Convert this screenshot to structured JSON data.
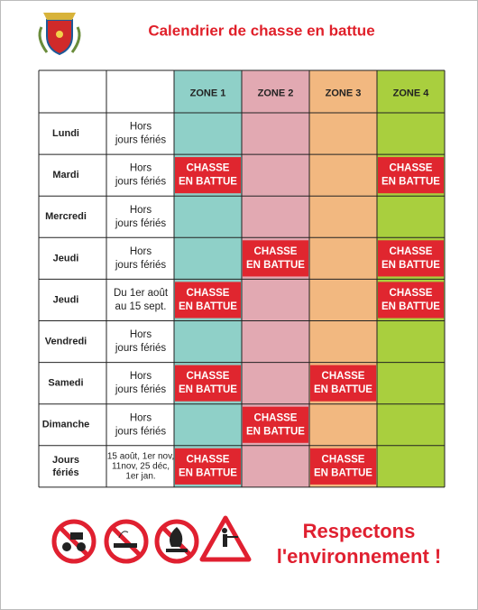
{
  "title": "Calendrier de chasse en battue",
  "table": {
    "zones": [
      "ZONE 1",
      "ZONE 2",
      "ZONE 3",
      "ZONE 4"
    ],
    "rows": [
      {
        "day": [
          "Lundi"
        ],
        "period": [
          "Hors",
          "jours fériés"
        ],
        "zones": [
          null,
          null,
          null,
          null
        ]
      },
      {
        "day": [
          "Mardi"
        ],
        "period": [
          "Hors",
          "jours fériés"
        ],
        "zones": [
          [
            "CHASSE",
            "EN BATTUE"
          ],
          null,
          null,
          [
            "CHASSE",
            "EN BATTUE"
          ]
        ]
      },
      {
        "day": [
          "Mercredi"
        ],
        "period": [
          "Hors",
          "jours fériés"
        ],
        "zones": [
          null,
          null,
          null,
          null
        ]
      },
      {
        "day": [
          "Jeudi"
        ],
        "period": [
          "Hors",
          "jours fériés"
        ],
        "zones": [
          null,
          [
            "CHASSE",
            "EN BATTUE"
          ],
          null,
          [
            "CHASSE",
            "EN BATTUE"
          ]
        ]
      },
      {
        "day": [
          "Jeudi"
        ],
        "period": [
          "Du 1er août",
          "au 15 sept."
        ],
        "zones": [
          [
            "CHASSE",
            "EN BATTUE"
          ],
          null,
          null,
          [
            "CHASSE",
            "EN BATTUE"
          ]
        ]
      },
      {
        "day": [
          "Vendredi"
        ],
        "period": [
          "Hors",
          "jours fériés"
        ],
        "zones": [
          null,
          null,
          null,
          null
        ]
      },
      {
        "day": [
          "Samedi"
        ],
        "period": [
          "Hors",
          "jours fériés"
        ],
        "zones": [
          [
            "CHASSE",
            "EN BATTUE"
          ],
          null,
          [
            "CHASSE",
            "EN BATTUE"
          ],
          null
        ]
      },
      {
        "day": [
          "Dimanche"
        ],
        "period": [
          "Hors",
          "jours fériés"
        ],
        "zones": [
          null,
          [
            "CHASSE",
            "EN BATTUE"
          ],
          null,
          null
        ]
      },
      {
        "day": [
          "Jours",
          "fériés"
        ],
        "period": [
          "15 août, 1er nov,",
          "11nov, 25 déc,",
          "1er jan."
        ],
        "zones": [
          [
            "CHASSE",
            "EN BATTUE"
          ],
          null,
          [
            "CHASSE",
            "EN BATTUE"
          ],
          null
        ]
      }
    ]
  },
  "footer": [
    "Respectons",
    "l'environnement !"
  ]
}
